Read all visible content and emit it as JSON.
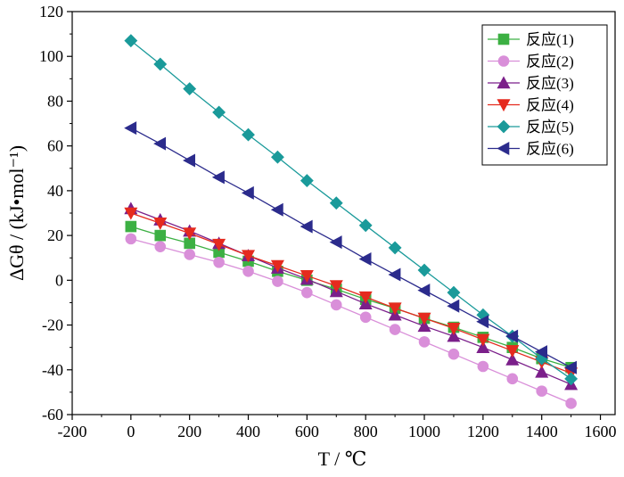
{
  "chart_data": {
    "type": "line",
    "title": "",
    "xlabel": "T / ℃",
    "ylabel": "ΔGθ / (kJ•mol⁻¹)",
    "xlim": [
      -200,
      1650
    ],
    "ylim": [
      -60,
      120
    ],
    "x_ticks": [
      -200,
      0,
      200,
      400,
      600,
      800,
      1000,
      1200,
      1400,
      1600
    ],
    "y_ticks": [
      -60,
      -40,
      -20,
      0,
      20,
      40,
      60,
      80,
      100,
      120
    ],
    "grid": false,
    "legend_position": "top-right",
    "x": [
      0,
      100,
      200,
      300,
      400,
      500,
      600,
      700,
      800,
      900,
      1000,
      1100,
      1200,
      1300,
      1400,
      1500
    ],
    "series": [
      {
        "name": "反应(1)",
        "color": "#3cb043",
        "marker": "square",
        "values": [
          24,
          20,
          16.5,
          12.5,
          8.5,
          4,
          0,
          -4,
          -8.5,
          -12.5,
          -17,
          -21,
          -25.5,
          -30,
          -35,
          -39
        ]
      },
      {
        "name": "反应(2)",
        "color": "#d98fd9",
        "marker": "circle",
        "values": [
          18.5,
          15,
          11.5,
          8,
          4,
          -0.5,
          -5.5,
          -11,
          -16.5,
          -22,
          -27.5,
          -33,
          -38.5,
          -44,
          -49.5,
          -55
        ]
      },
      {
        "name": "反应(3)",
        "color": "#7b1f8a",
        "marker": "triangle-up",
        "values": [
          32,
          27,
          22,
          16.5,
          11,
          5.5,
          0.5,
          -5,
          -10.5,
          -15.5,
          -20.5,
          -25,
          -30,
          -35.5,
          -41,
          -46.5
        ]
      },
      {
        "name": "反应(4)",
        "color": "#e52a1e",
        "marker": "triangle-down",
        "values": [
          30,
          25.5,
          21,
          16,
          11,
          6.5,
          2,
          -2.5,
          -7.5,
          -12.5,
          -17,
          -21.5,
          -26.5,
          -31.5,
          -36.5,
          -41.5
        ]
      },
      {
        "name": "反应(5)",
        "color": "#1a9a9a",
        "marker": "diamond",
        "values": [
          107,
          96.5,
          85.5,
          75,
          65,
          55,
          44.5,
          34.5,
          24.5,
          14.5,
          4.5,
          -5.5,
          -15.5,
          -25,
          -35,
          -44
        ]
      },
      {
        "name": "反应(6)",
        "color": "#2b2b8c",
        "marker": "triangle-left",
        "values": [
          68,
          61,
          53.5,
          46,
          39,
          31.5,
          24,
          17,
          9.5,
          2.5,
          -4.5,
          -11.5,
          -18.5,
          -25,
          -32,
          -39
        ]
      }
    ]
  }
}
